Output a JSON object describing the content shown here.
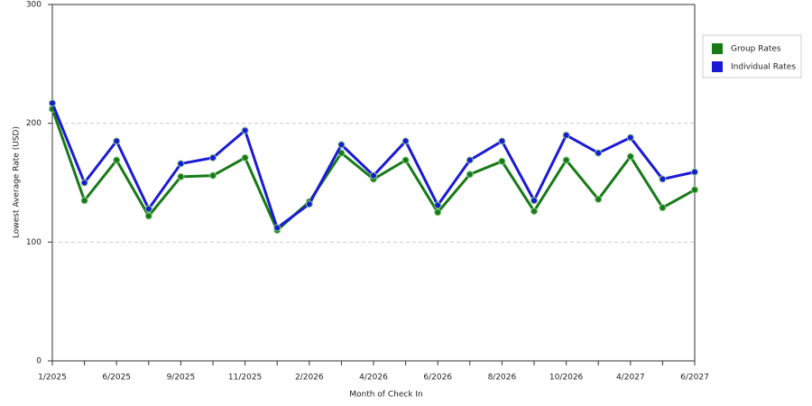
{
  "chart_data": {
    "type": "line",
    "x_label": "Month of Check In",
    "y_label": "Lowest Average Rate (USD)",
    "categories": [
      "1/2025",
      null,
      "6/2025",
      null,
      "9/2025",
      null,
      "11/2025",
      null,
      "2/2026",
      null,
      "4/2026",
      null,
      "6/2026",
      null,
      "8/2026",
      null,
      "10/2026",
      null,
      "4/2027",
      null,
      "6/2027"
    ],
    "series": [
      {
        "name": "Group Rates",
        "color": "#177a17",
        "values": [
          212,
          135,
          169,
          122,
          155,
          156,
          171,
          110,
          134,
          175,
          153,
          169,
          125,
          157,
          168,
          126,
          169,
          136,
          172,
          129,
          144
        ]
      },
      {
        "name": "Individual Rates",
        "color": "#1a1ad6",
        "values": [
          217,
          150,
          185,
          128,
          166,
          171,
          194,
          112,
          132,
          182,
          156,
          185,
          131,
          169,
          185,
          135,
          190,
          175,
          188,
          153,
          159
        ]
      }
    ],
    "ylim": [
      0,
      300
    ],
    "yticks": [
      0,
      100,
      200,
      300
    ],
    "grid": true,
    "legend": "right"
  }
}
